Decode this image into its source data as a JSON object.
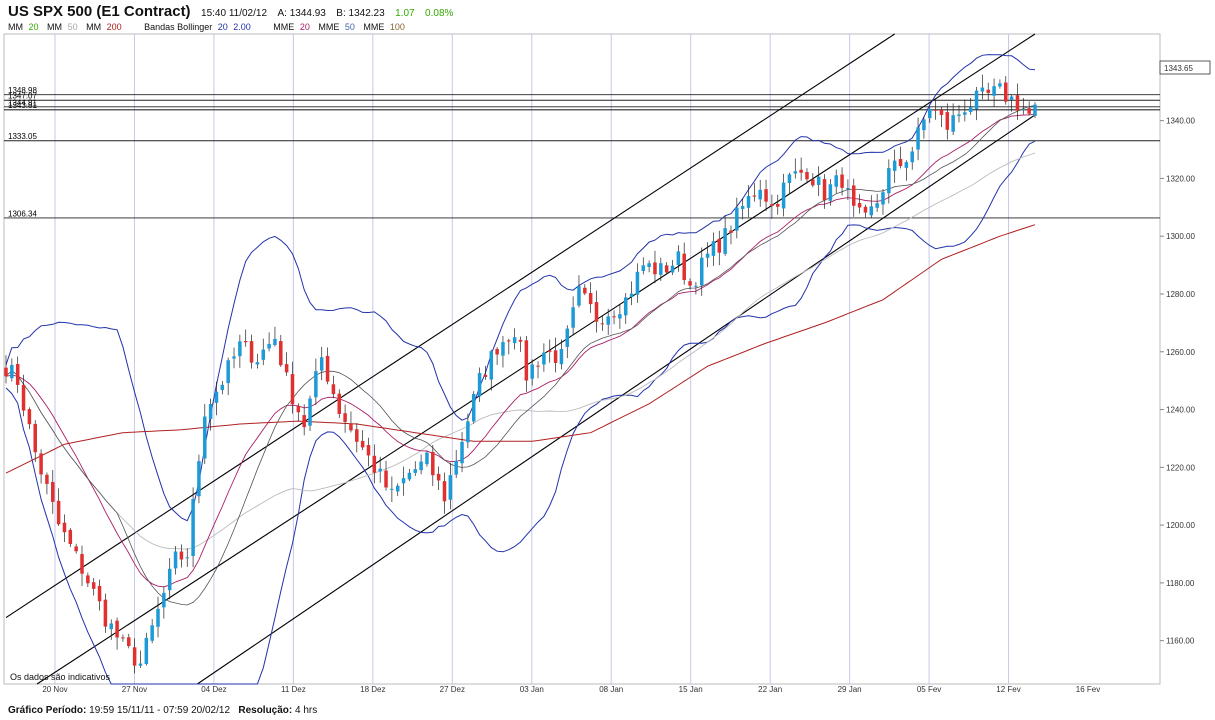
{
  "header": {
    "title": "US SPX 500 (E1 Contract)",
    "time": "15:40 11/02/12",
    "ask": "A: 1344.93",
    "bid": "B: 1342.23",
    "change": "1.07",
    "change_pct": "0.08%"
  },
  "legend": [
    {
      "label": "MM",
      "value": "20",
      "color": "#33aa00"
    },
    {
      "label": "MM",
      "value": "50",
      "color": "#aaaaaa"
    },
    {
      "label": "MM",
      "value": "200",
      "color": "#b02020"
    },
    {
      "label": "Bandas Bollinger",
      "value": "20",
      "value2": "2.00",
      "color": "#2233aa"
    },
    {
      "label": "MME",
      "value": "20",
      "color": "#aa1f66"
    },
    {
      "label": "MME",
      "value": "50",
      "color": "#4466aa"
    },
    {
      "label": "MME",
      "value": "100",
      "color": "#886633"
    }
  ],
  "footer": {
    "period_label": "Gráfico Período:",
    "period_value": "19:59 15/11/11 - 07:59 20/02/12",
    "resolution_label": "Resolução:",
    "resolution_value": "4 hrs"
  },
  "chart_data": {
    "type": "candlestick",
    "ylim": [
      1145,
      1370
    ],
    "y_ticks": [
      1160,
      1180,
      1200,
      1220,
      1240,
      1260,
      1280,
      1300,
      1320,
      1340
    ],
    "y_tick_labels": [
      "1160.00",
      "1180.00",
      "1200.00",
      "1220.00",
      "1240.00",
      "1260.00",
      "1280.00",
      "1300.00",
      "1320.00",
      "1340.00"
    ],
    "x_labels": [
      "20 Nov",
      "27 Nov",
      "04 Dez",
      "11 Dez",
      "18 Dez",
      "27 Dez",
      "03 Jan",
      "08 Jan",
      "15 Jan",
      "22 Jan",
      "29 Jan",
      "05 Fev",
      "12 Fev",
      "16 Fev"
    ],
    "current_price": 1343.65,
    "current_price_label": "1343.65",
    "horizontal_levels": [
      {
        "value": 1348.98,
        "label": "1348.98"
      },
      {
        "value": 1347.07,
        "label": "1347.07"
      },
      {
        "value": 1344.81,
        "label": "1344.81"
      },
      {
        "value": 1343.81,
        "label": "1343.81"
      },
      {
        "value": 1333.05,
        "label": "1333.05"
      },
      {
        "value": 1306.34,
        "label": "1306.34"
      }
    ],
    "price_path": [
      [
        0,
        1255
      ],
      [
        2,
        1250
      ],
      [
        5,
        1225
      ],
      [
        9,
        1200
      ],
      [
        13,
        1185
      ],
      [
        17,
        1168
      ],
      [
        20,
        1158
      ],
      [
        23,
        1152
      ],
      [
        26,
        1170
      ],
      [
        29,
        1188
      ],
      [
        31,
        1190
      ],
      [
        34,
        1240
      ],
      [
        37,
        1250
      ],
      [
        40,
        1262
      ],
      [
        43,
        1258
      ],
      [
        46,
        1265
      ],
      [
        48,
        1250
      ],
      [
        51,
        1235
      ],
      [
        54,
        1258
      ],
      [
        57,
        1240
      ],
      [
        60,
        1230
      ],
      [
        63,
        1220
      ],
      [
        66,
        1210
      ],
      [
        69,
        1218
      ],
      [
        72,
        1222
      ],
      [
        75,
        1210
      ],
      [
        78,
        1230
      ],
      [
        81,
        1250
      ],
      [
        84,
        1262
      ],
      [
        87,
        1268
      ],
      [
        89,
        1252
      ],
      [
        92,
        1260
      ],
      [
        95,
        1258
      ],
      [
        98,
        1280
      ],
      [
        101,
        1272
      ],
      [
        104,
        1275
      ],
      [
        106,
        1278
      ],
      [
        109,
        1290
      ],
      [
        112,
        1288
      ],
      [
        115,
        1292
      ],
      [
        117,
        1283
      ],
      [
        120,
        1293
      ],
      [
        123,
        1300
      ],
      [
        126,
        1310
      ],
      [
        129,
        1318
      ],
      [
        131,
        1310
      ],
      [
        134,
        1320
      ],
      [
        137,
        1323
      ],
      [
        140,
        1315
      ],
      [
        143,
        1320
      ],
      [
        145,
        1308
      ],
      [
        147,
        1305
      ],
      [
        149,
        1312
      ],
      [
        151,
        1322
      ],
      [
        153,
        1325
      ],
      [
        155,
        1330
      ],
      [
        158,
        1345
      ],
      [
        161,
        1338
      ],
      [
        164,
        1345
      ],
      [
        167,
        1348
      ],
      [
        170,
        1350
      ],
      [
        173,
        1346
      ],
      [
        175,
        1342
      ],
      [
        176,
        1343.65
      ]
    ],
    "ma200_path": [
      [
        0,
        1218
      ],
      [
        10,
        1228
      ],
      [
        20,
        1232
      ],
      [
        30,
        1233
      ],
      [
        40,
        1235
      ],
      [
        50,
        1236
      ],
      [
        60,
        1235
      ],
      [
        70,
        1232
      ],
      [
        80,
        1229
      ],
      [
        90,
        1229
      ],
      [
        100,
        1232
      ],
      [
        110,
        1242
      ],
      [
        120,
        1255
      ],
      [
        130,
        1263
      ],
      [
        140,
        1270
      ],
      [
        150,
        1278
      ],
      [
        160,
        1292
      ],
      [
        170,
        1300
      ],
      [
        176,
        1304
      ]
    ],
    "channel_lines": [
      {
        "from": [
          0,
          1168
        ],
        "to": [
          152,
          1370
        ]
      },
      {
        "from": [
          0,
          1138
        ],
        "to": [
          176,
          1370
        ]
      },
      {
        "from": [
          0,
          1100
        ],
        "to": [
          176,
          1342
        ]
      }
    ]
  }
}
